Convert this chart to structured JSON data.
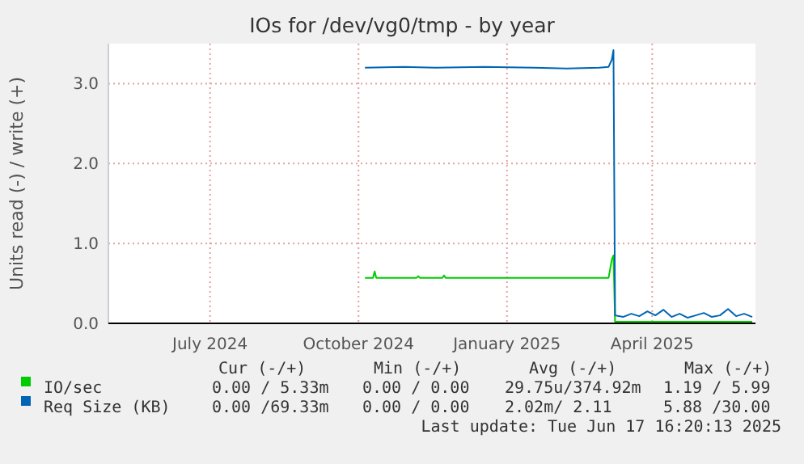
{
  "chart_data": {
    "type": "line",
    "title": "IOs for /dev/vg0/tmp - by year",
    "ylabel": "Units read (-) / write (+)",
    "xlim": [
      "2024-04-29",
      "2025-06-04"
    ],
    "ylim": [
      0,
      3.5
    ],
    "xticks": [
      {
        "value": "2024-07-01",
        "label": "July 2024"
      },
      {
        "value": "2024-10-01",
        "label": "October 2024"
      },
      {
        "value": "2025-01-01",
        "label": "January 2025"
      },
      {
        "value": "2025-04-01",
        "label": "April 2025"
      }
    ],
    "yticks": [
      {
        "value": 0,
        "label": "0.0"
      },
      {
        "value": 1,
        "label": "1.0"
      },
      {
        "value": 2,
        "label": "2.0"
      },
      {
        "value": 3,
        "label": "3.0"
      }
    ],
    "grid": true,
    "legend": "bottom",
    "series": [
      {
        "name": "IO/sec",
        "color": "#00cc00",
        "x": [
          "2024-10-05",
          "2024-10-10",
          "2024-10-11",
          "2024-10-12",
          "2024-11-06",
          "2024-11-07",
          "2024-11-08",
          "2024-11-22",
          "2024-11-23",
          "2024-11-24",
          "2025-03-05",
          "2025-03-07",
          "2025-03-08",
          "2025-03-09",
          "2025-04-15",
          "2025-05-15",
          "2025-06-02"
        ],
        "values": [
          0.57,
          0.57,
          0.65,
          0.57,
          0.57,
          0.59,
          0.57,
          0.57,
          0.6,
          0.57,
          0.57,
          0.8,
          0.85,
          0.02,
          0.02,
          0.02,
          0.02
        ]
      },
      {
        "name": "Req Size (KB)",
        "color": "#0066b3",
        "x": [
          "2024-10-05",
          "2024-10-29",
          "2024-11-18",
          "2024-12-18",
          "2025-01-18",
          "2025-02-07",
          "2025-02-27",
          "2025-03-05",
          "2025-03-07",
          "2025-03-08",
          "2025-03-09",
          "2025-03-14",
          "2025-03-19",
          "2025-03-24",
          "2025-03-29",
          "2025-04-03",
          "2025-04-08",
          "2025-04-13",
          "2025-04-18",
          "2025-04-23",
          "2025-04-28",
          "2025-05-03",
          "2025-05-08",
          "2025-05-13",
          "2025-05-18",
          "2025-05-23",
          "2025-05-28",
          "2025-06-02"
        ],
        "values": [
          3.2,
          3.21,
          3.2,
          3.21,
          3.2,
          3.19,
          3.2,
          3.21,
          3.3,
          3.42,
          0.1,
          0.08,
          0.12,
          0.09,
          0.15,
          0.1,
          0.17,
          0.08,
          0.12,
          0.07,
          0.1,
          0.13,
          0.08,
          0.1,
          0.18,
          0.09,
          0.12,
          0.08
        ]
      }
    ],
    "annotations": [
      "Cur (-/+)",
      "Min (-/+)",
      "Avg (-/+)",
      "Max (-/+)",
      "0.00 / 5.33m",
      "0.00 / 0.00",
      "29.75u/374.92m",
      "1.19 / 5.99",
      "0.00 /69.33m",
      "0.00 / 0.00",
      "2.02m/ 2.11",
      "5.88 /30.00",
      "Last update: Tue Jun 17 16:20:13 2025"
    ]
  }
}
